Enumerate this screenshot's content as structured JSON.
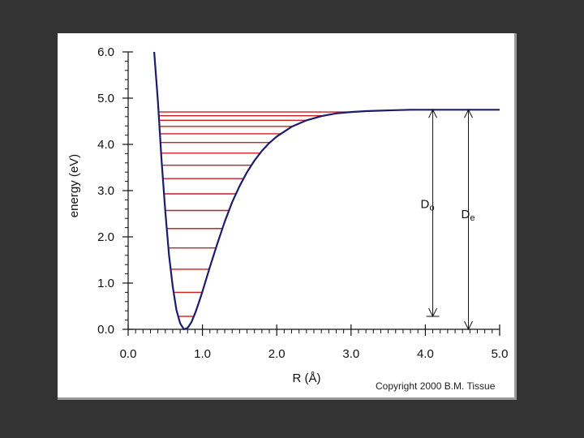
{
  "chart_data": {
    "type": "line",
    "title": "",
    "xlabel": "R (Å)",
    "ylabel": "energy (eV)",
    "xlim": [
      0,
      5
    ],
    "ylim": [
      0,
      6
    ],
    "x_ticks": [
      "0.0",
      "1.0",
      "2.0",
      "3.0",
      "4.0",
      "5.0"
    ],
    "y_ticks": [
      "0.0",
      "1.0",
      "2.0",
      "3.0",
      "4.0",
      "5.0",
      "6.0"
    ],
    "grid": false,
    "series": [
      {
        "name": "",
        "color": "#1c1c6e",
        "x": [
          0.35,
          0.4,
          0.45,
          0.5,
          0.55,
          0.6,
          0.65,
          0.7,
          0.75,
          0.8,
          0.85,
          0.9,
          0.95,
          1.0,
          1.1,
          1.2,
          1.3,
          1.4,
          1.5,
          1.6,
          1.7,
          1.8,
          1.9,
          2.0,
          2.2,
          2.4,
          2.6,
          2.8,
          3.0,
          3.2,
          3.4,
          3.6,
          3.8,
          4.0,
          4.5,
          5.0
        ],
        "y": [
          6.0,
          4.95,
          3.65,
          2.55,
          1.6,
          0.92,
          0.42,
          0.13,
          0.0,
          0.03,
          0.15,
          0.34,
          0.57,
          0.82,
          1.35,
          1.85,
          2.33,
          2.75,
          3.1,
          3.4,
          3.65,
          3.86,
          4.03,
          4.17,
          4.38,
          4.52,
          4.61,
          4.67,
          4.7,
          4.72,
          4.73,
          4.74,
          4.75,
          4.75,
          4.75,
          4.75
        ]
      }
    ],
    "vibrational_levels": {
      "color": "#cc1f1f",
      "energies": [
        0.28,
        0.8,
        1.3,
        1.76,
        2.18,
        2.57,
        2.93,
        3.26,
        3.55,
        3.81,
        4.04,
        4.23,
        4.39,
        4.52,
        4.62,
        4.7
      ]
    },
    "annotations": [
      {
        "label": "D",
        "subscript": "o",
        "x": 4.1,
        "y_from": 0.28,
        "y_to": 4.75
      },
      {
        "label": "D",
        "subscript": "e",
        "x": 4.58,
        "y_from": 0.0,
        "y_to": 4.75
      }
    ],
    "copyright": "Copyright 2000 B.M. Tissue"
  }
}
